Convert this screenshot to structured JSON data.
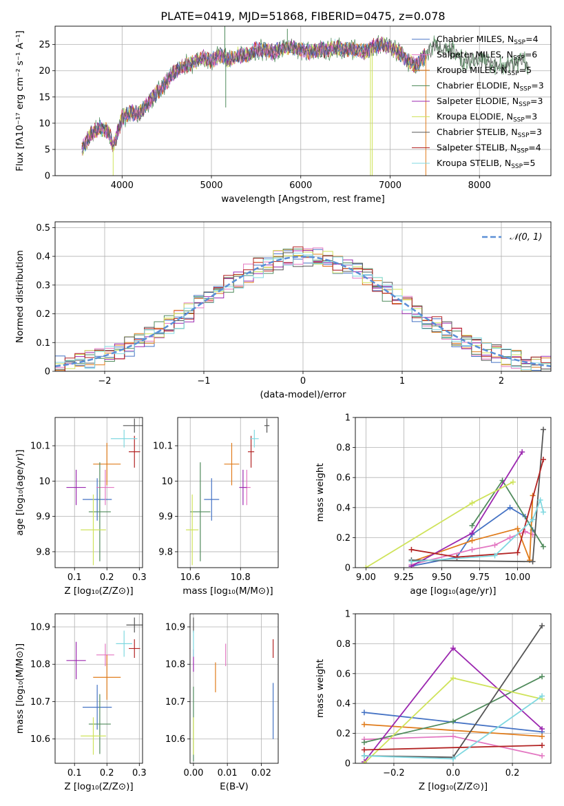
{
  "colors": {
    "Chabrier MILES": "#4472c4",
    "Salpeter MILES": "#e377c2",
    "Kroupa MILES": "#e07b1a",
    "Chabrier ELODIE": "#4f8a5b",
    "Salpeter ELODIE": "#9b27af",
    "Kroupa ELODIE": "#cfe35a",
    "Chabrier STELIB": "#555555",
    "Salpeter STELIB": "#b22222",
    "Kroupa STELIB": "#7fd8e0",
    "gauss": "#5b8fd6"
  },
  "chart_data": [
    {
      "type": "line",
      "title": "PLATE=0419, MJD=51868, FIBERID=0475, z=0.078",
      "xlabel": "wavelength [Angstrom, rest frame]",
      "ylabel": "Flux [fλ10⁻¹⁷ erg cm⁻² s⁻¹ A⁻¹]",
      "xlim": [
        3250,
        8800
      ],
      "ylim": [
        0,
        28.5
      ],
      "xticks": [
        4000,
        5000,
        6000,
        7000,
        8000
      ],
      "yticks": [
        0,
        5,
        10,
        15,
        20,
        25
      ],
      "legend": "right",
      "legend_entries": [
        {
          "name": "Chabrier MILES",
          "nssp": "4"
        },
        {
          "name": "Salpeter MILES",
          "nssp": "6"
        },
        {
          "name": "Kroupa MILES",
          "nssp": "5"
        },
        {
          "name": "Chabrier ELODIE",
          "nssp": "3"
        },
        {
          "name": "Salpeter ELODIE",
          "nssp": "3"
        },
        {
          "name": "Kroupa ELODIE",
          "nssp": "3"
        },
        {
          "name": "Chabrier STELIB",
          "nssp": "3"
        },
        {
          "name": "Salpeter STELIB",
          "nssp": "4"
        },
        {
          "name": "Kroupa STELIB",
          "nssp": "5"
        }
      ],
      "spectrum_knots": [
        [
          3550,
          5
        ],
        [
          3650,
          8
        ],
        [
          3750,
          9
        ],
        [
          3850,
          8.5
        ],
        [
          3900,
          5.5
        ],
        [
          4000,
          11
        ],
        [
          4100,
          12
        ],
        [
          4200,
          12
        ],
        [
          4300,
          14
        ],
        [
          4400,
          16
        ],
        [
          4500,
          18
        ],
        [
          4600,
          20
        ],
        [
          4700,
          21
        ],
        [
          4800,
          21.5
        ],
        [
          4900,
          22.5
        ],
        [
          5000,
          22
        ],
        [
          5100,
          23
        ],
        [
          5200,
          22
        ],
        [
          5300,
          23
        ],
        [
          5400,
          23
        ],
        [
          5500,
          24
        ],
        [
          5600,
          24
        ],
        [
          5700,
          23.5
        ],
        [
          5800,
          24.5
        ],
        [
          5900,
          24.5
        ],
        [
          6000,
          24
        ],
        [
          6100,
          23.5
        ],
        [
          6200,
          24
        ],
        [
          6300,
          24
        ],
        [
          6400,
          24.5
        ],
        [
          6500,
          24
        ],
        [
          6600,
          24
        ],
        [
          6700,
          23.5
        ],
        [
          6800,
          24.5
        ],
        [
          6900,
          25
        ],
        [
          7000,
          24.5
        ],
        [
          7100,
          23.5
        ],
        [
          7200,
          22
        ],
        [
          7300,
          21
        ],
        [
          7400,
          23
        ],
        [
          7500,
          25
        ],
        [
          7600,
          24
        ],
        [
          7700,
          24
        ],
        [
          7800,
          22
        ],
        [
          7900,
          22
        ],
        [
          8000,
          22.5
        ],
        [
          8100,
          21.5
        ],
        [
          8200,
          21
        ],
        [
          8300,
          21
        ],
        [
          8400,
          21.5
        ],
        [
          8500,
          22
        ],
        [
          8550,
          20
        ]
      ],
      "spikes": [
        [
          5150,
          28.5
        ],
        [
          5160,
          13
        ],
        [
          5850,
          28
        ],
        [
          6780,
          0
        ],
        [
          6800,
          0
        ],
        [
          7400,
          0
        ],
        [
          3900,
          0
        ]
      ]
    },
    {
      "type": "line",
      "xlabel": "(data-model)/error",
      "ylabel": "Normed distribution",
      "xlim": [
        -2.5,
        2.5
      ],
      "ylim": [
        0,
        0.52
      ],
      "xticks": [
        -2,
        -1,
        0,
        1,
        2
      ],
      "yticks": [
        0.0,
        0.1,
        0.2,
        0.3,
        0.4,
        0.5
      ],
      "legend": "top-right",
      "series": [
        {
          "name": "𝒩(0, 1)",
          "type": "gaussian",
          "mu": 0,
          "sigma": 1
        }
      ],
      "histogram_bin_width": 0.1
    },
    {
      "type": "scatter",
      "xlabel": "Z [log₁₀(Z/Z⊙)]",
      "ylabel": "age  [log₁₀(age/yr)]",
      "xlim": [
        0.04,
        0.31
      ],
      "ylim": [
        9.755,
        10.18
      ],
      "xticks": [
        0.1,
        0.2,
        0.3
      ],
      "yticks": [
        9.8,
        9.9,
        10.0,
        10.1
      ],
      "points": [
        {
          "series": "Chabrier MILES",
          "x": 0.17,
          "xerr": 0.09,
          "y": 9.948,
          "yerr": 0.06
        },
        {
          "series": "Salpeter MILES",
          "x": 0.195,
          "xerr": 0.055,
          "y": 9.982,
          "yerr": 0.05
        },
        {
          "series": "Kroupa MILES",
          "x": 0.2,
          "xerr": 0.085,
          "y": 10.048,
          "yerr": 0.06
        },
        {
          "series": "Chabrier ELODIE",
          "x": 0.178,
          "xerr": 0.068,
          "y": 9.913,
          "yerr": 0.14
        },
        {
          "series": "Salpeter ELODIE",
          "x": 0.105,
          "xerr": 0.06,
          "y": 9.982,
          "yerr": 0.05
        },
        {
          "series": "Kroupa ELODIE",
          "x": 0.158,
          "xerr": 0.078,
          "y": 9.862,
          "yerr": 0.1
        },
        {
          "series": "Chabrier STELIB",
          "x": 0.285,
          "xerr": 0.07,
          "y": 10.157,
          "yerr": 0.02
        },
        {
          "series": "Salpeter STELIB",
          "x": 0.285,
          "xerr": 0.035,
          "y": 10.083,
          "yerr": 0.045
        },
        {
          "series": "Kroupa STELIB",
          "x": 0.253,
          "xerr": 0.082,
          "y": 10.12,
          "yerr": 0.025
        }
      ]
    },
    {
      "type": "scatter",
      "xlabel": "mass [log₁₀(M/M⊙)]",
      "ylabel": "",
      "xlim": [
        10.55,
        10.95
      ],
      "ylim": [
        9.755,
        10.18
      ],
      "xticks": [
        10.6,
        10.8
      ],
      "yticks": [
        9.8,
        9.9,
        10.0,
        10.1
      ],
      "points": [
        {
          "series": "Chabrier MILES",
          "x": 10.685,
          "xerr": 0.06,
          "y": 9.948,
          "yerr": 0.06
        },
        {
          "series": "Salpeter MILES",
          "x": 10.825,
          "xerr": 0.03,
          "y": 9.982,
          "yerr": 0.05
        },
        {
          "series": "Kroupa MILES",
          "x": 10.765,
          "xerr": 0.06,
          "y": 10.048,
          "yerr": 0.06
        },
        {
          "series": "Chabrier ELODIE",
          "x": 10.64,
          "xerr": 0.08,
          "y": 9.913,
          "yerr": 0.14
        },
        {
          "series": "Salpeter ELODIE",
          "x": 10.81,
          "xerr": 0.03,
          "y": 9.982,
          "yerr": 0.05
        },
        {
          "series": "Kroupa ELODIE",
          "x": 10.608,
          "xerr": 0.05,
          "y": 9.862,
          "yerr": 0.1
        },
        {
          "series": "Chabrier STELIB",
          "x": 10.905,
          "xerr": 0.02,
          "y": 10.157,
          "yerr": 0.02
        },
        {
          "series": "Salpeter STELIB",
          "x": 10.842,
          "xerr": 0.025,
          "y": 10.083,
          "yerr": 0.045
        },
        {
          "series": "Kroupa STELIB",
          "x": 10.855,
          "xerr": 0.035,
          "y": 10.12,
          "yerr": 0.025
        }
      ]
    },
    {
      "type": "line",
      "xlabel": "age  [log₁₀(age/yr)]",
      "ylabel": "mass weight",
      "xlim": [
        8.93,
        10.22
      ],
      "ylim": [
        0,
        1.0
      ],
      "xticks": [
        9.0,
        9.25,
        9.5,
        9.75,
        10.0
      ],
      "xticklabels": [
        "9.00",
        "9.25",
        "9.50",
        "9.75",
        "10.00"
      ],
      "yticks": [
        0,
        0.2,
        0.4,
        0.6,
        0.8,
        1.0
      ],
      "series": [
        {
          "name": "Chabrier MILES",
          "x": [
            9.3,
            9.6,
            9.7,
            9.95,
            10.05,
            10.1
          ],
          "y": [
            0.01,
            0.07,
            0.22,
            0.4,
            0.34,
            0.25
          ]
        },
        {
          "name": "Salpeter MILES",
          "x": [
            9.3,
            9.7,
            9.85,
            9.95,
            10.05,
            10.1
          ],
          "y": [
            0.02,
            0.12,
            0.15,
            0.2,
            0.24,
            0.22
          ]
        },
        {
          "name": "Kroupa MILES",
          "x": [
            9.3,
            9.7,
            10.0,
            10.08,
            10.1
          ],
          "y": [
            0.04,
            0.18,
            0.26,
            0.05,
            0.48
          ]
        },
        {
          "name": "Chabrier ELODIE",
          "x": [
            9.7,
            9.9,
            10.17
          ],
          "y": [
            0.28,
            0.58,
            0.14
          ]
        },
        {
          "name": "Salpeter ELODIE",
          "x": [
            9.3,
            9.7,
            10.03
          ],
          "y": [
            0.01,
            0.23,
            0.77
          ]
        },
        {
          "name": "Kroupa ELODIE",
          "x": [
            9.0,
            9.7,
            9.97
          ],
          "y": [
            0.0,
            0.43,
            0.57
          ]
        },
        {
          "name": "Chabrier STELIB",
          "x": [
            9.3,
            10.1,
            10.17
          ],
          "y": [
            0.05,
            0.04,
            0.92
          ]
        },
        {
          "name": "Salpeter STELIB",
          "x": [
            9.3,
            9.6,
            10.0,
            10.17
          ],
          "y": [
            0.12,
            0.07,
            0.1,
            0.72
          ]
        },
        {
          "name": "Kroupa STELIB",
          "x": [
            9.3,
            9.85,
            10.1,
            10.15,
            10.17
          ],
          "y": [
            0.04,
            0.08,
            0.32,
            0.45,
            0.37
          ]
        }
      ]
    },
    {
      "type": "scatter",
      "xlabel": "Z [log₁₀(Z/Z⊙)]",
      "ylabel": "mass [log₁₀(M/M⊙)]",
      "xlim": [
        0.04,
        0.31
      ],
      "ylim": [
        10.535,
        10.935
      ],
      "xticks": [
        0.1,
        0.2,
        0.3
      ],
      "yticks": [
        10.6,
        10.7,
        10.8,
        10.9
      ],
      "points": [
        {
          "series": "Chabrier MILES",
          "x": 0.17,
          "xerr": 0.09,
          "y": 10.685,
          "yerr": 0.06
        },
        {
          "series": "Salpeter MILES",
          "x": 0.195,
          "xerr": 0.055,
          "y": 10.825,
          "yerr": 0.03
        },
        {
          "series": "Kroupa MILES",
          "x": 0.2,
          "xerr": 0.085,
          "y": 10.765,
          "yerr": 0.06
        },
        {
          "series": "Chabrier ELODIE",
          "x": 0.178,
          "xerr": 0.068,
          "y": 10.64,
          "yerr": 0.08
        },
        {
          "series": "Salpeter ELODIE",
          "x": 0.105,
          "xerr": 0.06,
          "y": 10.81,
          "yerr": 0.05
        },
        {
          "series": "Kroupa ELODIE",
          "x": 0.158,
          "xerr": 0.078,
          "y": 10.608,
          "yerr": 0.05
        },
        {
          "series": "Chabrier STELIB",
          "x": 0.285,
          "xerr": 0.05,
          "y": 10.905,
          "yerr": 0.02
        },
        {
          "series": "Salpeter STELIB",
          "x": 0.285,
          "xerr": 0.035,
          "y": 10.842,
          "yerr": 0.025
        },
        {
          "series": "Kroupa STELIB",
          "x": 0.253,
          "xerr": 0.05,
          "y": 10.855,
          "yerr": 0.035
        }
      ]
    },
    {
      "type": "scatter",
      "xlabel": "E(B-V)",
      "ylabel": "",
      "xlim": [
        -0.001,
        0.025
      ],
      "ylim": [
        10.535,
        10.935
      ],
      "xticks": [
        0.0,
        0.01,
        0.02
      ],
      "xticklabels": [
        "0.00",
        "0.01",
        "0.02"
      ],
      "yticks": [
        10.6,
        10.7,
        10.8,
        10.9
      ],
      "points": [
        {
          "series": "Chabrier MILES",
          "x": 0.0235,
          "xerr": 0,
          "y": 10.675,
          "yerr": 0.075
        },
        {
          "series": "Salpeter MILES",
          "x": 0.0095,
          "xerr": 0,
          "y": 10.825,
          "yerr": 0.03
        },
        {
          "series": "Kroupa MILES",
          "x": 0.0065,
          "xerr": 0,
          "y": 10.765,
          "yerr": 0.04
        },
        {
          "series": "Chabrier ELODIE",
          "x": 0.0,
          "xerr": 0,
          "y": 10.64,
          "yerr": 0.1
        },
        {
          "series": "Salpeter ELODIE",
          "x": 0.0,
          "xerr": 0,
          "y": 10.81,
          "yerr": 0.03
        },
        {
          "series": "Kroupa ELODIE",
          "x": 0.0,
          "xerr": 0,
          "y": 10.608,
          "yerr": 0.05
        },
        {
          "series": "Chabrier STELIB",
          "x": 0.0,
          "xerr": 0,
          "y": 10.905,
          "yerr": 0.02
        },
        {
          "series": "Salpeter STELIB",
          "x": 0.0235,
          "xerr": 0,
          "y": 10.842,
          "yerr": 0.025
        },
        {
          "series": "Kroupa STELIB",
          "x": 0.0,
          "xerr": 0,
          "y": 10.855,
          "yerr": 0.035
        }
      ]
    },
    {
      "type": "line",
      "xlabel": "Z [log₁₀(Z/Z⊙)]",
      "ylabel": "mass weight",
      "xlim": [
        -0.33,
        0.33
      ],
      "ylim": [
        0,
        1.0
      ],
      "xticks": [
        -0.2,
        0.0,
        0.2
      ],
      "xticklabels": [
        "−0.2",
        "0.0",
        "0.2"
      ],
      "yticks": [
        0,
        0.2,
        0.4,
        0.6,
        0.8,
        1.0
      ],
      "series": [
        {
          "name": "Chabrier MILES",
          "x": [
            -0.3,
            0.3
          ],
          "y": [
            0.34,
            0.21
          ]
        },
        {
          "name": "Salpeter MILES",
          "x": [
            -0.3,
            0.0,
            0.3
          ],
          "y": [
            0.16,
            0.18,
            0.05
          ]
        },
        {
          "name": "Kroupa MILES",
          "x": [
            -0.3,
            0.3
          ],
          "y": [
            0.26,
            0.18
          ]
        },
        {
          "name": "Chabrier ELODIE",
          "x": [
            -0.3,
            0.0,
            0.3
          ],
          "y": [
            0.14,
            0.28,
            0.58
          ]
        },
        {
          "name": "Salpeter ELODIE",
          "x": [
            -0.3,
            0.0,
            0.3
          ],
          "y": [
            0.01,
            0.77,
            0.23
          ]
        },
        {
          "name": "Kroupa ELODIE",
          "x": [
            -0.3,
            0.0,
            0.3
          ],
          "y": [
            0.0,
            0.57,
            0.43
          ]
        },
        {
          "name": "Chabrier STELIB",
          "x": [
            -0.3,
            0.0,
            0.3
          ],
          "y": [
            0.05,
            0.04,
            0.92
          ]
        },
        {
          "name": "Salpeter STELIB",
          "x": [
            -0.3,
            0.3
          ],
          "y": [
            0.09,
            0.12
          ]
        },
        {
          "name": "Kroupa STELIB",
          "x": [
            -0.3,
            0.0,
            0.3
          ],
          "y": [
            0.05,
            0.03,
            0.45
          ]
        }
      ]
    }
  ]
}
